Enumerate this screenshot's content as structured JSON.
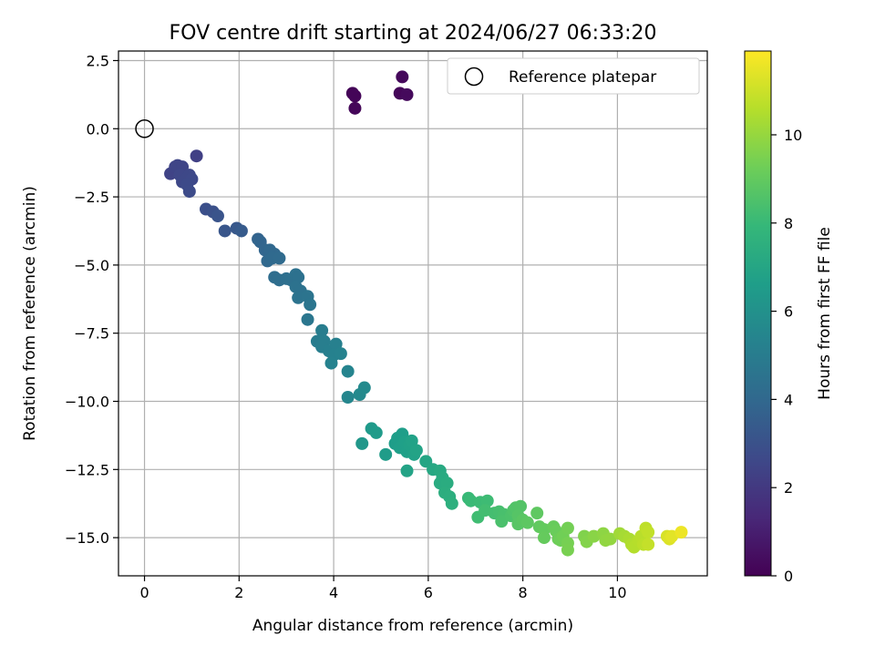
{
  "chart_data": {
    "type": "scatter",
    "title": "FOV centre drift starting at 2024/06/27 06:33:20",
    "xlabel": "Angular distance from reference (arcmin)",
    "ylabel": "Rotation from reference (arcmin)",
    "xlim": [
      -0.55,
      11.9
    ],
    "ylim": [
      -16.4,
      2.85
    ],
    "xticks": [
      0,
      2,
      4,
      6,
      8,
      10
    ],
    "yticks": [
      2.5,
      0.0,
      -2.5,
      -5.0,
      -7.5,
      -10.0,
      -12.5,
      -15.0
    ],
    "xtick_labels": [
      "0",
      "2",
      "4",
      "6",
      "8",
      "10"
    ],
    "ytick_labels": [
      "2.5",
      "0.0",
      "−2.5",
      "−5.0",
      "−7.5",
      "−10.0",
      "−12.5",
      "−15.0"
    ],
    "grid": true,
    "legend": {
      "position": "top-right",
      "entries": [
        {
          "label": "Reference platepar",
          "marker": "open-circle"
        }
      ]
    },
    "reference_point": {
      "x": 0,
      "y": 0
    },
    "colorbar": {
      "label": "Hours from first FF file",
      "range": [
        0,
        11.9
      ],
      "ticks": [
        0,
        2,
        4,
        6,
        8,
        10
      ],
      "tick_labels": [
        "0",
        "2",
        "4",
        "6",
        "8",
        "10"
      ],
      "colormap": [
        "#440154",
        "#482878",
        "#3e4989",
        "#31688e",
        "#26828e",
        "#1f9e89",
        "#35b779",
        "#6ece58",
        "#b5de2b",
        "#fde725"
      ]
    },
    "points": [
      {
        "x": 4.4,
        "y": 1.3,
        "t": 0.1
      },
      {
        "x": 4.45,
        "y": 1.2,
        "t": 0.15
      },
      {
        "x": 4.45,
        "y": 0.75,
        "t": 0.2
      },
      {
        "x": 5.4,
        "y": 1.3,
        "t": 0.2
      },
      {
        "x": 5.45,
        "y": 1.9,
        "t": 0.25
      },
      {
        "x": 5.55,
        "y": 1.25,
        "t": 0.3
      },
      {
        "x": 1.1,
        "y": -1.0,
        "t": 2.3
      },
      {
        "x": 0.55,
        "y": -1.65,
        "t": 2.4
      },
      {
        "x": 0.6,
        "y": -1.6,
        "t": 2.4
      },
      {
        "x": 0.65,
        "y": -1.4,
        "t": 2.45
      },
      {
        "x": 0.7,
        "y": -1.35,
        "t": 2.5
      },
      {
        "x": 0.8,
        "y": -1.4,
        "t": 2.5
      },
      {
        "x": 0.75,
        "y": -1.7,
        "t": 2.55
      },
      {
        "x": 0.8,
        "y": -1.95,
        "t": 2.6
      },
      {
        "x": 0.9,
        "y": -1.8,
        "t": 2.6
      },
      {
        "x": 0.95,
        "y": -1.7,
        "t": 2.6
      },
      {
        "x": 1.0,
        "y": -1.85,
        "t": 2.65
      },
      {
        "x": 0.9,
        "y": -2.05,
        "t": 2.7
      },
      {
        "x": 0.95,
        "y": -2.3,
        "t": 2.75
      },
      {
        "x": 1.3,
        "y": -2.95,
        "t": 2.9
      },
      {
        "x": 1.45,
        "y": -3.05,
        "t": 3.0
      },
      {
        "x": 1.55,
        "y": -3.2,
        "t": 3.1
      },
      {
        "x": 1.7,
        "y": -3.75,
        "t": 3.2
      },
      {
        "x": 1.95,
        "y": -3.65,
        "t": 3.3
      },
      {
        "x": 2.05,
        "y": -3.75,
        "t": 3.4
      },
      {
        "x": 2.4,
        "y": -4.05,
        "t": 3.8
      },
      {
        "x": 2.45,
        "y": -4.15,
        "t": 3.85
      },
      {
        "x": 2.55,
        "y": -4.45,
        "t": 3.9
      },
      {
        "x": 2.65,
        "y": -4.45,
        "t": 3.95
      },
      {
        "x": 2.75,
        "y": -4.6,
        "t": 4.0
      },
      {
        "x": 2.6,
        "y": -4.85,
        "t": 4.0
      },
      {
        "x": 2.7,
        "y": -4.75,
        "t": 4.05
      },
      {
        "x": 2.85,
        "y": -4.75,
        "t": 4.1
      },
      {
        "x": 2.75,
        "y": -5.45,
        "t": 4.2
      },
      {
        "x": 2.85,
        "y": -5.55,
        "t": 4.25
      },
      {
        "x": 3.0,
        "y": -5.5,
        "t": 4.3
      },
      {
        "x": 3.1,
        "y": -5.55,
        "t": 4.35
      },
      {
        "x": 3.2,
        "y": -5.35,
        "t": 4.4
      },
      {
        "x": 3.25,
        "y": -5.45,
        "t": 4.4
      },
      {
        "x": 3.2,
        "y": -5.8,
        "t": 4.45
      },
      {
        "x": 3.3,
        "y": -5.95,
        "t": 4.5
      },
      {
        "x": 3.25,
        "y": -6.2,
        "t": 4.55
      },
      {
        "x": 3.45,
        "y": -6.15,
        "t": 4.6
      },
      {
        "x": 3.5,
        "y": -6.45,
        "t": 4.65
      },
      {
        "x": 3.45,
        "y": -7.0,
        "t": 4.7
      },
      {
        "x": 3.65,
        "y": -7.8,
        "t": 5.0
      },
      {
        "x": 3.75,
        "y": -7.4,
        "t": 5.05
      },
      {
        "x": 3.8,
        "y": -7.8,
        "t": 5.1
      },
      {
        "x": 3.75,
        "y": -8.0,
        "t": 5.1
      },
      {
        "x": 3.9,
        "y": -8.15,
        "t": 5.15
      },
      {
        "x": 4.05,
        "y": -7.9,
        "t": 5.2
      },
      {
        "x": 4.0,
        "y": -8.3,
        "t": 5.25
      },
      {
        "x": 4.15,
        "y": -8.25,
        "t": 5.3
      },
      {
        "x": 3.95,
        "y": -8.6,
        "t": 5.3
      },
      {
        "x": 4.3,
        "y": -8.9,
        "t": 5.4
      },
      {
        "x": 4.3,
        "y": -9.85,
        "t": 5.5
      },
      {
        "x": 4.55,
        "y": -9.75,
        "t": 5.6
      },
      {
        "x": 4.65,
        "y": -9.5,
        "t": 5.65
      },
      {
        "x": 4.6,
        "y": -11.55,
        "t": 6.3
      },
      {
        "x": 4.8,
        "y": -11.0,
        "t": 6.4
      },
      {
        "x": 4.9,
        "y": -11.15,
        "t": 6.45
      },
      {
        "x": 5.1,
        "y": -11.95,
        "t": 6.5
      },
      {
        "x": 5.3,
        "y": -11.55,
        "t": 6.55
      },
      {
        "x": 5.35,
        "y": -11.35,
        "t": 6.6
      },
      {
        "x": 5.45,
        "y": -11.2,
        "t": 6.6
      },
      {
        "x": 5.4,
        "y": -11.7,
        "t": 6.65
      },
      {
        "x": 5.5,
        "y": -11.5,
        "t": 6.7
      },
      {
        "x": 5.55,
        "y": -11.85,
        "t": 6.7
      },
      {
        "x": 5.6,
        "y": -11.6,
        "t": 6.75
      },
      {
        "x": 5.65,
        "y": -11.45,
        "t": 6.8
      },
      {
        "x": 5.7,
        "y": -11.95,
        "t": 6.8
      },
      {
        "x": 5.75,
        "y": -11.8,
        "t": 6.85
      },
      {
        "x": 5.55,
        "y": -12.55,
        "t": 6.9
      },
      {
        "x": 5.95,
        "y": -12.2,
        "t": 7.0
      },
      {
        "x": 6.1,
        "y": -12.5,
        "t": 7.1
      },
      {
        "x": 6.25,
        "y": -12.55,
        "t": 7.2
      },
      {
        "x": 6.3,
        "y": -12.8,
        "t": 7.25
      },
      {
        "x": 6.25,
        "y": -13.0,
        "t": 7.3
      },
      {
        "x": 6.4,
        "y": -13.0,
        "t": 7.35
      },
      {
        "x": 6.35,
        "y": -13.35,
        "t": 7.4
      },
      {
        "x": 6.45,
        "y": -13.5,
        "t": 7.45
      },
      {
        "x": 6.5,
        "y": -13.75,
        "t": 7.5
      },
      {
        "x": 6.85,
        "y": -13.55,
        "t": 8.0
      },
      {
        "x": 6.9,
        "y": -13.65,
        "t": 8.05
      },
      {
        "x": 7.1,
        "y": -13.7,
        "t": 8.1
      },
      {
        "x": 7.25,
        "y": -13.65,
        "t": 8.15
      },
      {
        "x": 7.05,
        "y": -14.25,
        "t": 8.2
      },
      {
        "x": 7.2,
        "y": -14.0,
        "t": 8.25
      },
      {
        "x": 7.4,
        "y": -14.1,
        "t": 8.3
      },
      {
        "x": 7.5,
        "y": -14.05,
        "t": 8.35
      },
      {
        "x": 7.6,
        "y": -14.15,
        "t": 8.4
      },
      {
        "x": 7.55,
        "y": -14.4,
        "t": 8.45
      },
      {
        "x": 7.75,
        "y": -14.2,
        "t": 8.5
      },
      {
        "x": 7.8,
        "y": -14.0,
        "t": 8.55
      },
      {
        "x": 7.85,
        "y": -13.9,
        "t": 8.6
      },
      {
        "x": 7.95,
        "y": -13.85,
        "t": 8.65
      },
      {
        "x": 7.9,
        "y": -14.2,
        "t": 8.7
      },
      {
        "x": 7.9,
        "y": -14.5,
        "t": 8.75
      },
      {
        "x": 8.0,
        "y": -14.35,
        "t": 8.8
      },
      {
        "x": 8.1,
        "y": -14.45,
        "t": 8.85
      },
      {
        "x": 8.3,
        "y": -14.1,
        "t": 8.9
      },
      {
        "x": 8.35,
        "y": -14.6,
        "t": 8.95
      },
      {
        "x": 8.45,
        "y": -14.7,
        "t": 9.0
      },
      {
        "x": 8.45,
        "y": -15.0,
        "t": 9.05
      },
      {
        "x": 8.65,
        "y": -14.6,
        "t": 9.1
      },
      {
        "x": 8.7,
        "y": -14.75,
        "t": 9.15
      },
      {
        "x": 8.75,
        "y": -15.05,
        "t": 9.2
      },
      {
        "x": 8.8,
        "y": -15.1,
        "t": 9.25
      },
      {
        "x": 8.85,
        "y": -14.95,
        "t": 9.3
      },
      {
        "x": 8.95,
        "y": -14.65,
        "t": 9.35
      },
      {
        "x": 8.95,
        "y": -15.2,
        "t": 9.4
      },
      {
        "x": 8.95,
        "y": -15.45,
        "t": 9.45
      },
      {
        "x": 9.3,
        "y": -14.95,
        "t": 9.6
      },
      {
        "x": 9.35,
        "y": -15.15,
        "t": 9.65
      },
      {
        "x": 9.5,
        "y": -14.95,
        "t": 9.75
      },
      {
        "x": 9.7,
        "y": -14.85,
        "t": 9.85
      },
      {
        "x": 9.75,
        "y": -15.1,
        "t": 9.9
      },
      {
        "x": 9.85,
        "y": -15.05,
        "t": 9.95
      },
      {
        "x": 10.05,
        "y": -14.85,
        "t": 10.2
      },
      {
        "x": 10.15,
        "y": -14.95,
        "t": 10.3
      },
      {
        "x": 10.25,
        "y": -15.05,
        "t": 10.4
      },
      {
        "x": 10.3,
        "y": -15.25,
        "t": 10.5
      },
      {
        "x": 10.35,
        "y": -15.35,
        "t": 10.55
      },
      {
        "x": 10.45,
        "y": -15.1,
        "t": 10.6
      },
      {
        "x": 10.5,
        "y": -14.95,
        "t": 10.65
      },
      {
        "x": 10.55,
        "y": -15.25,
        "t": 10.7
      },
      {
        "x": 10.6,
        "y": -14.65,
        "t": 10.75
      },
      {
        "x": 10.65,
        "y": -14.8,
        "t": 10.8
      },
      {
        "x": 10.65,
        "y": -15.25,
        "t": 10.85
      },
      {
        "x": 11.05,
        "y": -14.95,
        "t": 11.2
      },
      {
        "x": 11.1,
        "y": -15.05,
        "t": 11.3
      },
      {
        "x": 11.15,
        "y": -14.95,
        "t": 11.4
      },
      {
        "x": 11.35,
        "y": -14.8,
        "t": 11.6
      }
    ]
  }
}
